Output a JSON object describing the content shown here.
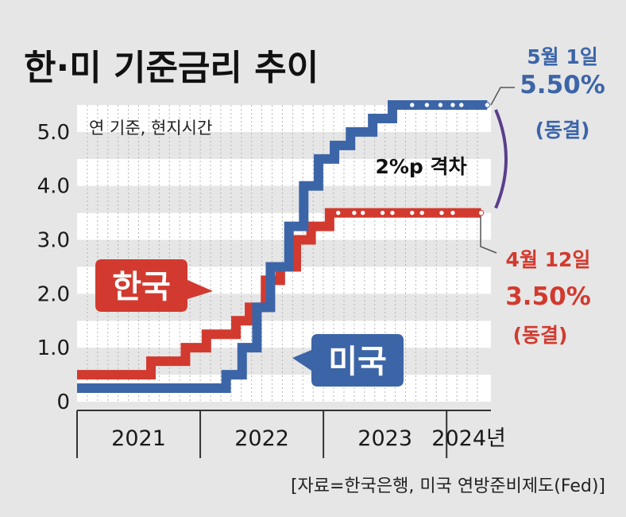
{
  "title": "한·미 기준금리 추이",
  "note": "연 기준, 현지시간",
  "source": "[자료=한국은행, 미국 연방준비제도(Fed)]",
  "gap_label": "2%p 격차",
  "us_annotation": {
    "date": "5월 1일",
    "rate": "5.50%",
    "status": "(동결)"
  },
  "kr_annotation": {
    "date": "4월 12일",
    "rate": "3.50%",
    "status": "(동결)"
  },
  "colors": {
    "korea": "#d23a2f",
    "us": "#3c65a8",
    "gap_bracket": "#5a3f8c"
  },
  "chart_data": {
    "type": "line",
    "step": true,
    "x_unit": "year",
    "xlim": [
      2021.0,
      2024.36
    ],
    "ylim": [
      0,
      5.5
    ],
    "yticks": [
      {
        "value": 0,
        "label": "0"
      },
      {
        "value": 1,
        "label": "1.0"
      },
      {
        "value": 2,
        "label": "2.0"
      },
      {
        "value": 3,
        "label": "3.0"
      },
      {
        "value": 4,
        "label": "4.0"
      },
      {
        "value": 5,
        "label": "5.0"
      }
    ],
    "xticks": [
      {
        "value": 2021.5,
        "label": "2021"
      },
      {
        "value": 2022.5,
        "label": "2022"
      },
      {
        "value": 2023.5,
        "label": "2023"
      },
      {
        "value": 2024.18,
        "label": "2024년"
      }
    ],
    "year_boundaries": [
      2022.0,
      2023.0,
      2024.0
    ],
    "grid": true,
    "series": [
      {
        "name": "한국",
        "color": "#d23a2f",
        "points": [
          {
            "x": 2021.0,
            "y": 0.5
          },
          {
            "x": 2021.6,
            "y": 0.75
          },
          {
            "x": 2021.88,
            "y": 1.0
          },
          {
            "x": 2022.05,
            "y": 1.25
          },
          {
            "x": 2022.29,
            "y": 1.5
          },
          {
            "x": 2022.4,
            "y": 1.75
          },
          {
            "x": 2022.53,
            "y": 2.25
          },
          {
            "x": 2022.65,
            "y": 2.5
          },
          {
            "x": 2022.78,
            "y": 3.0
          },
          {
            "x": 2022.9,
            "y": 3.25
          },
          {
            "x": 2023.05,
            "y": 3.5
          },
          {
            "x": 2024.28,
            "y": 3.5
          }
        ],
        "holds_x": [
          2023.12,
          2023.25,
          2023.32,
          2023.48,
          2023.56,
          2023.72,
          2023.8,
          2023.96,
          2024.05,
          2024.28
        ]
      },
      {
        "name": "미국",
        "color": "#3c65a8",
        "points": [
          {
            "x": 2021.0,
            "y": 0.25
          },
          {
            "x": 2022.21,
            "y": 0.5
          },
          {
            "x": 2022.34,
            "y": 1.0
          },
          {
            "x": 2022.46,
            "y": 1.75
          },
          {
            "x": 2022.57,
            "y": 2.5
          },
          {
            "x": 2022.72,
            "y": 3.25
          },
          {
            "x": 2022.84,
            "y": 4.0
          },
          {
            "x": 2022.96,
            "y": 4.5
          },
          {
            "x": 2023.09,
            "y": 4.75
          },
          {
            "x": 2023.22,
            "y": 5.0
          },
          {
            "x": 2023.4,
            "y": 5.25
          },
          {
            "x": 2023.56,
            "y": 5.5
          },
          {
            "x": 2024.33,
            "y": 5.5
          }
        ],
        "holds_x": [
          2023.72,
          2023.84,
          2023.95,
          2024.05,
          2024.12,
          2024.33
        ]
      }
    ]
  }
}
